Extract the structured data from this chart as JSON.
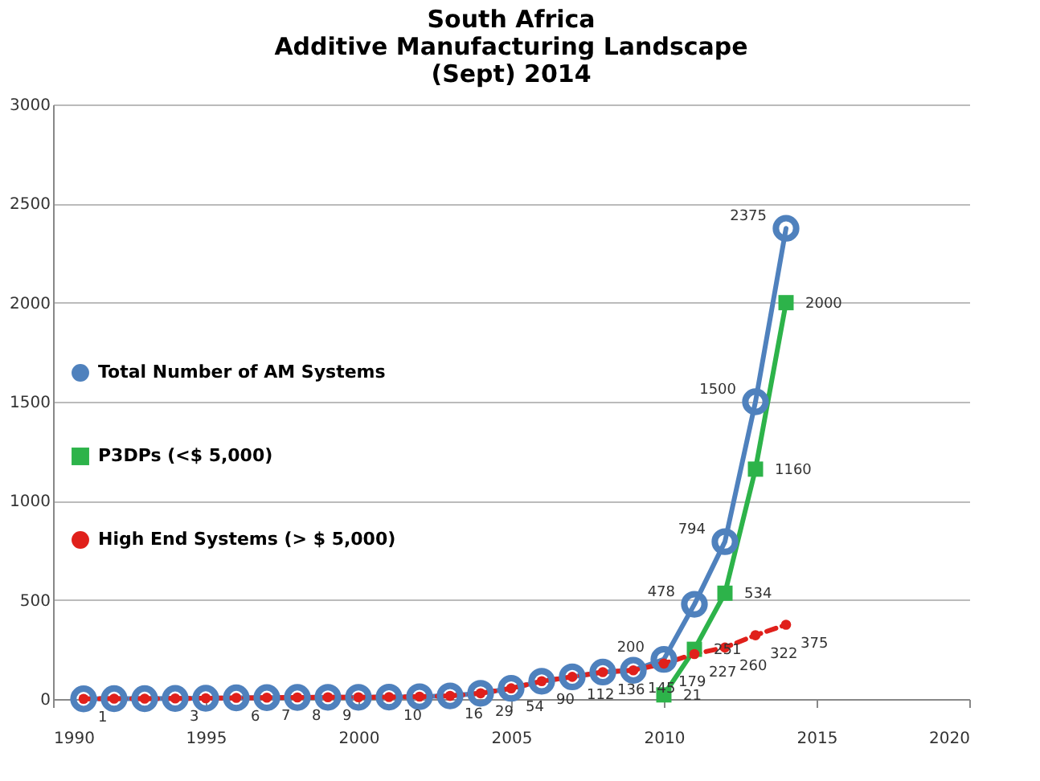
{
  "chart_data": {
    "type": "line",
    "title": "South Africa\nAdditive Manufacturing Landscape\n(Sept) 2014",
    "xlim": [
      1990,
      2020
    ],
    "xticks": [
      1990,
      1995,
      2000,
      2005,
      2010,
      2015,
      2020
    ],
    "ylim": [
      0,
      3000
    ],
    "yticks": [
      0,
      500,
      1000,
      1500,
      2000,
      2500,
      3000
    ],
    "grid": "y",
    "legend": "left",
    "line_style": "solid",
    "series": [
      {
        "name": "Total Number of AM Systems",
        "color": "#4f81bd",
        "marker": "circle",
        "x": [
          1991,
          1992,
          1993,
          1994,
          1995,
          1996,
          1997,
          1998,
          1999,
          2000,
          2001,
          2002,
          2003,
          2004,
          2005,
          2006,
          2007,
          2008,
          2009,
          2010,
          2011,
          2012,
          2013,
          2014
        ],
        "values": [
          1,
          2,
          2,
          3,
          4,
          6,
          7,
          8,
          9,
          9,
          10,
          12,
          16,
          29,
          54,
          90,
          112,
          136,
          145,
          200,
          478,
          794,
          1500,
          2375
        ],
        "value_labels": [
          null,
          null,
          null,
          null,
          null,
          null,
          null,
          null,
          null,
          null,
          null,
          null,
          null,
          null,
          null,
          null,
          null,
          null,
          null,
          "200",
          "478",
          "794",
          "1500",
          "2375"
        ]
      },
      {
        "name": "P3DPs (<$ 5,000)",
        "color": "#2db34a",
        "marker": "square",
        "x": [
          2010,
          2011,
          2012,
          2013,
          2014
        ],
        "values": [
          21,
          251,
          534,
          1160,
          2000
        ],
        "value_labels": [
          "21",
          "251",
          "534",
          "1160",
          "2000"
        ]
      },
      {
        "name": "High End Systems (> $ 5,000)",
        "color": "#e0201b",
        "marker": "circle",
        "line_style": "dashed",
        "x": [
          1991,
          1992,
          1993,
          1994,
          1995,
          1996,
          1997,
          1998,
          1999,
          2000,
          2001,
          2002,
          2003,
          2004,
          2005,
          2006,
          2007,
          2008,
          2009,
          2010,
          2011,
          2012,
          2013,
          2014
        ],
        "values": [
          1,
          2,
          2,
          3,
          4,
          6,
          7,
          8,
          9,
          9,
          10,
          12,
          16,
          29,
          54,
          90,
          112,
          136,
          145,
          179,
          227,
          260,
          322,
          375
        ],
        "value_labels": [
          "1",
          null,
          null,
          "3",
          null,
          "6",
          "7",
          "8",
          "9",
          null,
          "10",
          null,
          "16",
          "29",
          "54",
          "90",
          "112",
          "136",
          "145",
          "179",
          "227",
          "260",
          "322",
          "375"
        ]
      }
    ]
  }
}
